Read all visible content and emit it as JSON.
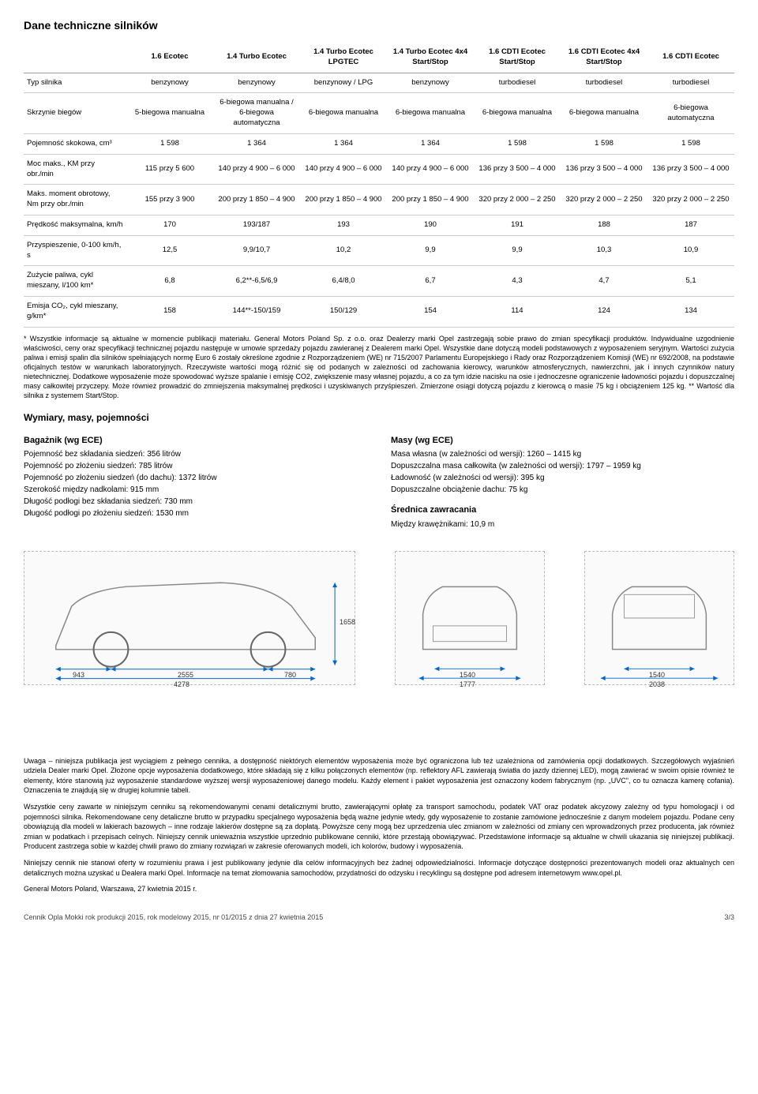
{
  "title": "Dane techniczne silników",
  "table": {
    "headers": [
      "",
      "1.6 Ecotec",
      "1.4 Turbo Ecotec",
      "1.4 Turbo Ecotec LPGTEC",
      "1.4 Turbo Ecotec 4x4 Start/Stop",
      "1.6 CDTI Ecotec Start/Stop",
      "1.6 CDTI Ecotec 4x4 Start/Stop",
      "1.6 CDTI Ecotec"
    ],
    "rows": [
      {
        "label": "Typ silnika",
        "cells": [
          "benzynowy",
          "benzynowy",
          "benzynowy / LPG",
          "benzynowy",
          "turbodiesel",
          "turbodiesel",
          "turbodiesel"
        ]
      },
      {
        "label": "Skrzynie biegów",
        "cells": [
          "5-biegowa manualna",
          "6-biegowa manualna / 6-biegowa automatyczna",
          "6-biegowa manualna",
          "6-biegowa manualna",
          "6-biegowa manualna",
          "6-biegowa manualna",
          "6-biegowa automatyczna"
        ]
      },
      {
        "label": "Pojemność skokowa, cm³",
        "cells": [
          "1 598",
          "1 364",
          "1 364",
          "1 364",
          "1 598",
          "1 598",
          "1 598"
        ]
      },
      {
        "label": "Moc maks., KM przy obr./min",
        "cells": [
          "115 przy 5 600",
          "140 przy 4 900 – 6 000",
          "140 przy 4 900 – 6 000",
          "140 przy 4 900 – 6 000",
          "136 przy 3 500 – 4 000",
          "136 przy 3 500 – 4 000",
          "136 przy 3 500 – 4 000"
        ]
      },
      {
        "label": "Maks. moment obrotowy, Nm przy obr./min",
        "cells": [
          "155 przy 3 900",
          "200 przy 1 850 – 4 900",
          "200 przy 1 850 – 4 900",
          "200 przy 1 850 – 4 900",
          "320 przy 2 000 – 2 250",
          "320 przy 2 000 – 2 250",
          "320 przy 2 000 – 2 250"
        ]
      },
      {
        "label": "Prędkość maksymalna, km/h",
        "cells": [
          "170",
          "193/187",
          "193",
          "190",
          "191",
          "188",
          "187"
        ]
      },
      {
        "label": "Przyspieszenie, 0-100 km/h, s",
        "cells": [
          "12,5",
          "9,9/10,7",
          "10,2",
          "9,9",
          "9,9",
          "10,3",
          "10,9"
        ]
      },
      {
        "label": "Zużycie paliwa, cykl mieszany, l/100 km*",
        "cells": [
          "6,8",
          "6,2**-6,5/6,9",
          "6,4/8,0",
          "6,7",
          "4,3",
          "4,7",
          "5,1"
        ]
      },
      {
        "label": "Emisja CO₂, cykl mieszany, g/km*",
        "cells": [
          "158",
          "144**-150/159",
          "150/129",
          "154",
          "114",
          "124",
          "134"
        ]
      }
    ]
  },
  "footnote": "* Wszystkie informacje są aktualne w momencie publikacji materiału. General Motors Poland Sp. z o.o. oraz Dealerzy marki Opel zastrzegają sobie prawo do zmian specyfikacji produktów. Indywidualne uzgodnienie właściwości, ceny oraz specyfikacji technicznej pojazdu następuje w umowie sprzedaży pojazdu zawieranej z Dealerem marki Opel. Wszystkie dane dotyczą modeli podstawowych z wyposażeniem seryjnym. Wartości zużycia paliwa i emisji spalin dla silników spełniających normę Euro 6 zostały określone zgodnie z Rozporządzeniem (WE) nr 715/2007 Parlamentu Europejskiego i Rady oraz Rozporządzeniem Komisji (WE) nr 692/2008, na podstawie oficjalnych testów w warunkach laboratoryjnych. Rzeczywiste wartości mogą różnić się od podanych w zależności od zachowania kierowcy, warunków atmosferycznych, nawierzchni, jak i innych czynników natury nietechnicznej. Dodatkowe wyposażenie może spowodować wyższe spalanie i emisję CO2, zwiększenie masy własnej pojazdu, a co za tym idzie nacisku na osie i jednoczesne ograniczenie ładowności pojazdu i dopuszczalnej masy całkowitej przyczepy. Może również prowadzić do zmniejszenia maksymalnej prędkości i uzyskiwanych przyśpieszeń. Zmierzone osiągi dotyczą pojazdu z kierowcą o masie 75 kg i obciążeniem 125 kg.   ** Wartość dla silnika z systemem Start/Stop.",
  "dims_title": "Wymiary, masy, pojemności",
  "left_col": {
    "subhead": "Bagażnik (wg ECE)",
    "lines": [
      "Pojemność bez składania siedzeń: 356 litrów",
      "Pojemność po złożeniu siedzeń: 785 litrów",
      "Pojemność po złożeniu siedzeń (do dachu): 1372 litrów",
      "Szerokość między nadkolami: 915 mm",
      "Długość podłogi bez składania siedzeń: 730 mm",
      "Długość podłogi po złożeniu siedzeń: 1530 mm"
    ]
  },
  "right_col": {
    "group1_head": "Masy (wg ECE)",
    "group1_lines": [
      "Masa własna (w zależności od wersji): 1260 – 1415 kg",
      "Dopuszczalna masa całkowita (w zależności od wersji): 1797 – 1959 kg",
      "Ładowność (w zależności od wersji): 395 kg",
      "Dopuszczalne obciążenie dachu: 75 kg"
    ],
    "group2_head": "Średnica zawracania",
    "group2_lines": [
      "Między krawężnikami: 10,9 m"
    ]
  },
  "car_dims": {
    "side": {
      "wheelbase": "2555",
      "front_overhang": "943",
      "rear_overhang": "780",
      "length": "4278",
      "height": "1658"
    },
    "front": {
      "track": "1540",
      "width": "1777"
    },
    "rear": {
      "track": "1540",
      "width": "2038"
    }
  },
  "legal": [
    "Uwaga – niniejsza publikacja jest wyciągiem z pełnego cennika, a dostępność niektórych elementów wyposażenia może być ograniczona lub też uzależniona od zamówienia opcji dodatkowych. Szczegółowych wyjaśnień udziela Dealer marki Opel. Złożone opcje wyposażenia dodatkowego, które składają się z kilku połączonych elementów (np. reflektory AFL zawierają światła do jazdy dziennej LED), mogą zawierać w swoim opisie również te elementy, które stanowią już wyposażenie standardowe wyższej wersji wyposażeniowej danego modelu. Każdy element i pakiet wyposażenia jest oznaczony kodem fabrycznym (np. „UVC\", co tu oznacza kamerę cofania). Oznaczenia te znajdują się w drugiej kolumnie tabeli.",
    "Wszystkie ceny zawarte w niniejszym cenniku są rekomendowanymi cenami detalicznymi brutto, zawierającymi opłatę za transport samochodu, podatek VAT oraz podatek akcyzowy zależny od typu homologacji i od pojemności silnika. Rekomendowane ceny detaliczne brutto w przypadku specjalnego wyposażenia będą ważne jedynie wtedy, gdy wyposażenie to zostanie zamówione jednocześnie z danym modelem pojazdu. Podane ceny obowiązują dla modeli w lakierach bazowych – inne rodzaje lakierów dostępne są za dopłatą. Powyższe ceny mogą bez uprzedzenia ulec zmianom w zależności od zmiany cen wprowadzonych przez producenta, jak również zmian w podatkach i przepisach celnych. Niniejszy cennik unieważnia wszystkie uprzednio publikowane cenniki, które przestają obowiązywać. Przedstawione informacje są aktualne w chwili ukazania się niniejszej publikacji. Producent zastrzega sobie w każdej chwili prawo do zmiany rozwiązań w zakresie oferowanych modeli, ich kolorów, budowy i wyposażenia.",
    "Niniejszy cennik nie stanowi oferty w rozumieniu prawa i jest publikowany jedynie dla celów informacyjnych bez żadnej odpowiedzialności. Informacje dotyczące dostępności prezentowanych modeli oraz aktualnych cen detalicznych można uzyskać u Dealera marki Opel. Informacje na temat złomowania samochodów, przydatności do odzysku i recyklingu są dostępne pod adresem internetowym www.opel.pl.",
    "General Motors Poland, Warszawa, 27 kwietnia 2015 r."
  ],
  "footer": {
    "left": "Cennik Opla Mokki rok produkcji 2015, rok modelowy 2015, nr 01/2015 z dnia 27 kwietnia 2015",
    "right": "3/3"
  }
}
